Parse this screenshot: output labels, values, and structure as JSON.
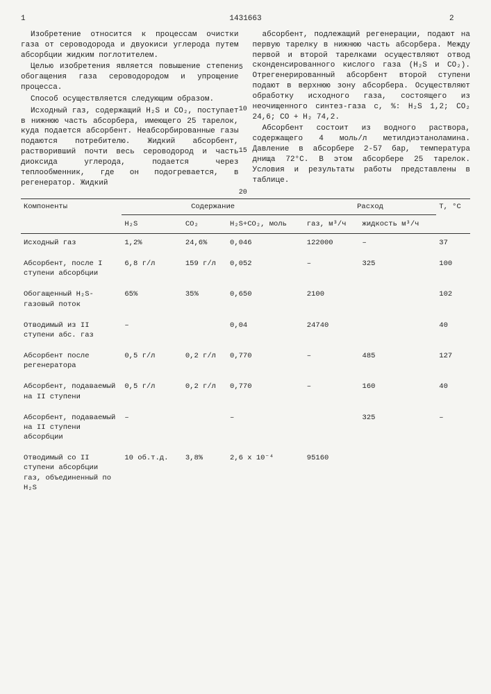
{
  "header": {
    "page_left": "1",
    "doc_number": "1431663",
    "page_right": "2"
  },
  "line_marks": [
    "5",
    "10",
    "15",
    "20"
  ],
  "left_col": {
    "p1": "Изобретение относится к процессам очистки газа от сероводорода и двуокиси углерода путем абсорбции жидким поглотителем.",
    "p2": "Целью изобретения является повышение степени обогащения газа сероводородом и упрощение процесса.",
    "p3": "Способ осуществляется следующим образом.",
    "p4": "Исходный газ, содержащий H₂S и CO₂, поступает в нижнюю часть абсорбера, имеющего 25 тарелок, куда подается абсорбент. Неабсорбированные газы подаются потребителю. Жидкий абсорбент, растворивший почти весь сероводород и часть диоксида углерода, подается через теплообменник, где он подогревается, в регенератор. Жидкий"
  },
  "right_col": {
    "p1": "абсорбент, подлежащий регенерации, подают на первую тарелку в нижнюю часть абсорбера. Между первой и второй тарелками осуществляют отвод сконденсированного кислого газа (H₂S и CO₂). Отрегенерированный абсорбент второй ступени подают в верхнюю зону абсорбера. Осуществляют обработку исходного газа, состоящего из неочищенного синтез-газа с, %: H₂S 1,2; CO₂ 24,6; CO + H₂ 74,2.",
    "p2": "Абсорбент состоит из водного раствора, содержащего 4 моль/л метилдиэтаноламина. Давление в абсорбере 2-57 бар, температура днища 72°С. В этом абсорбере 25 тарелок. Условия и результаты работы представлены в таблице."
  },
  "table": {
    "headers": {
      "components": "Компоненты",
      "content": "Содержание",
      "flow": "Расход",
      "temp": "T, °С",
      "h2s": "H₂S",
      "co2": "CO₂",
      "h2sco2": "H₂S+CO₂, моль",
      "gas": "газ, м³/ч",
      "liquid": "жидкость м³/ч"
    },
    "rows": [
      {
        "comp": "Исходный газ",
        "h2s": "1,2%",
        "co2": "24,6%",
        "mol": "0,046",
        "gas": "122000",
        "liq": "–",
        "t": "37"
      },
      {
        "comp": "Абсорбент, после I ступени абсорбции",
        "h2s": "6,8 г/л",
        "co2": "159 г/л",
        "mol": "0,052",
        "gas": "–",
        "liq": "325",
        "t": "100"
      },
      {
        "comp": "Обогащенный H₂S-газовый поток",
        "h2s": "65%",
        "co2": "35%",
        "mol": "0,650",
        "gas": "2100",
        "liq": "",
        "t": "102"
      },
      {
        "comp": "Отводимый из II ступени абс. газ",
        "h2s": "–",
        "co2": "",
        "mol": "0,04",
        "gas": "24740",
        "liq": "",
        "t": "40"
      },
      {
        "comp": "Абсорбент после регенератора",
        "h2s": "0,5 г/л",
        "co2": "0,2 г/л",
        "mol": "0,770",
        "gas": "–",
        "liq": "485",
        "t": "127"
      },
      {
        "comp": "Абсорбент, подаваемый на II ступени",
        "h2s": "0,5 г/л",
        "co2": "0,2 г/л",
        "mol": "0,770",
        "gas": "–",
        "liq": "160",
        "t": "40"
      },
      {
        "comp": "Абсорбент, подаваемый на II ступени абсорбции",
        "h2s": "–",
        "co2": "",
        "mol": "–",
        "gas": "",
        "liq": "325",
        "t": "–"
      },
      {
        "comp": "Отводимый со II ступени абсорбции газ, объединенный по H₂S",
        "h2s": "10 об.т.д.",
        "co2": "3,8%",
        "mol": "2,6 x 10⁻⁴",
        "gas": "95160",
        "liq": "",
        "t": ""
      }
    ]
  }
}
